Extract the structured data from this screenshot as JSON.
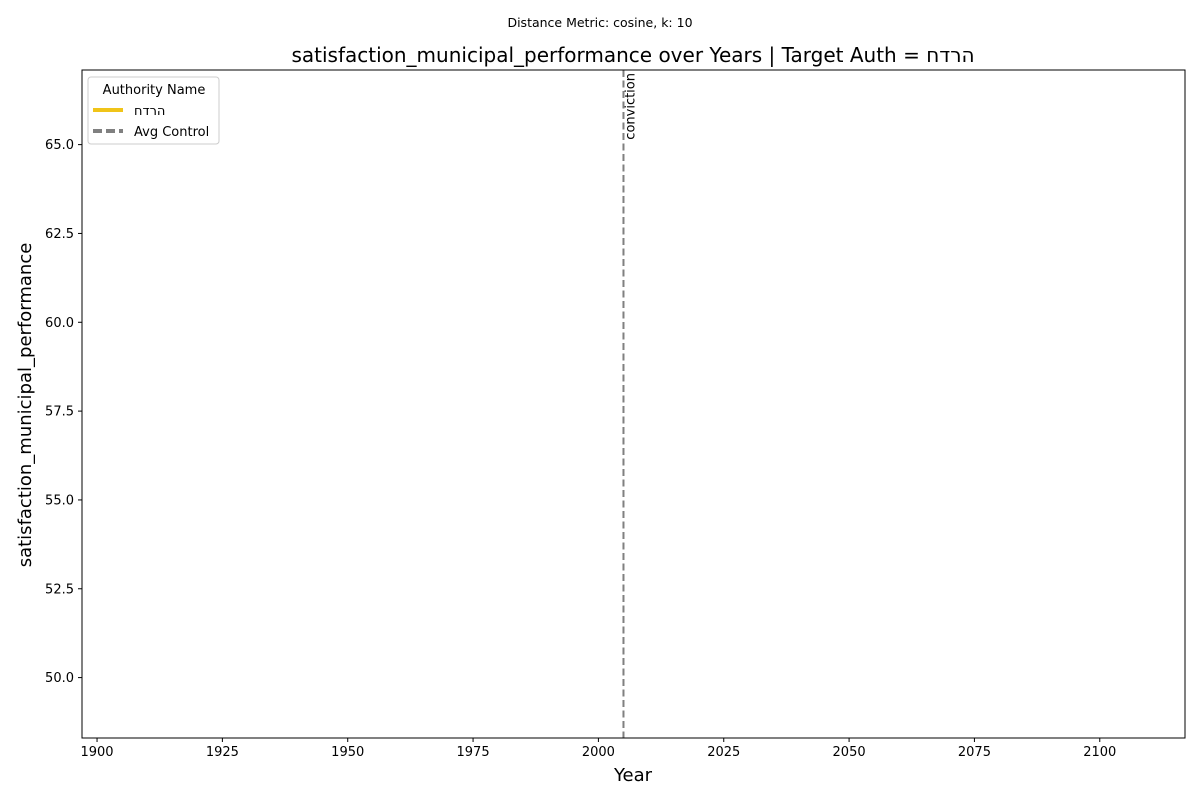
{
  "chart_data": {
    "type": "line",
    "suptitle": "Distance Metric: cosine, k: 10",
    "title": "satisfaction_municipal_performance over Years | Target Auth = הרדח",
    "xlabel": "Year",
    "ylabel": "satisfaction_municipal_performance",
    "xlim": [
      1897,
      2117
    ],
    "ylim": [
      48.3,
      67.1
    ],
    "x_ticks": [
      1900,
      1925,
      1950,
      1975,
      2000,
      2025,
      2050,
      2075,
      2100
    ],
    "x_tick_labels": [
      "1900",
      "1925",
      "1950",
      "1975",
      "2000",
      "2025",
      "2050",
      "2075",
      "2100"
    ],
    "y_ticks": [
      50.0,
      52.5,
      55.0,
      57.5,
      60.0,
      62.5,
      65.0
    ],
    "y_tick_labels": [
      "50.0",
      "52.5",
      "55.0",
      "57.5",
      "60.0",
      "62.5",
      "65.0"
    ],
    "grid": false,
    "legend": {
      "title": "Authority Name",
      "position": "top-left",
      "entries": [
        {
          "label": "הרדח",
          "color": "#f0c419",
          "style": "solid"
        },
        {
          "label": "Avg Control",
          "color": "#808080",
          "style": "dashed"
        }
      ]
    },
    "series": [
      {
        "name": "הרדח",
        "color": "#f0c419",
        "x": [],
        "y": []
      },
      {
        "name": "Avg Control",
        "color": "#808080",
        "x": [],
        "y": []
      }
    ],
    "vlines": [
      {
        "x": 2005,
        "label": "conviction",
        "color": "#808080",
        "style": "dashed"
      }
    ]
  }
}
